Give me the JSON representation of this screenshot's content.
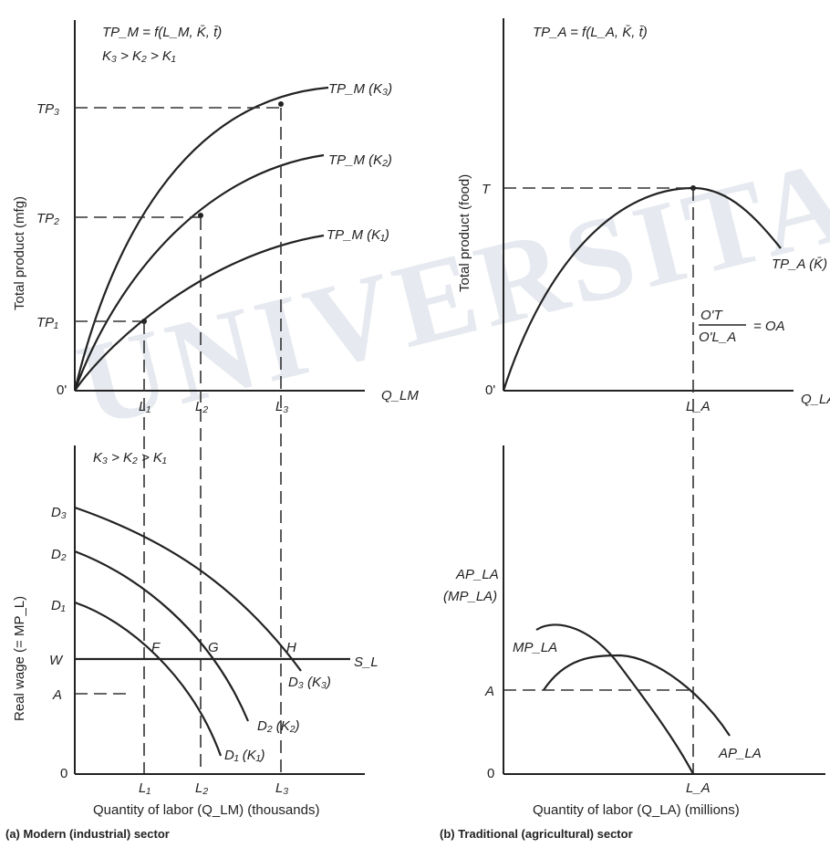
{
  "panel_a": {
    "top": {
      "equation": "TP_M = f(L_M, K̄, t̄)",
      "condition": "K₃ > K₂ > K₁",
      "y_axis_label": "Total product (mfg)",
      "x_axis_label": "Q_LM",
      "origin": "0'",
      "y_ticks": [
        "TP₃",
        "TP₂",
        "TP₁"
      ],
      "x_ticks": [
        "L₁",
        "L₂",
        "L₃"
      ],
      "curves": [
        "TP_M (K₃)",
        "TP_M (K₂)",
        "TP_M (K₁)"
      ]
    },
    "bottom": {
      "condition": "K₃ > K₂ > K₁",
      "y_axis_label": "Real wage (= MP_L)",
      "x_axis_label": "Quantity of labor (Q_LM) (thousands)",
      "origin": "0",
      "y_ticks": [
        "D₃",
        "D₂",
        "D₁",
        "W",
        "A"
      ],
      "x_ticks": [
        "L₁",
        "L₂",
        "L₃"
      ],
      "points": [
        "F",
        "G",
        "H"
      ],
      "supply_label": "S_L",
      "curves": [
        "D₃ (K₃)",
        "D₂ (K₂)",
        "D₁ (K₁)"
      ]
    },
    "caption": "(a) Modern (industrial) sector"
  },
  "panel_b": {
    "top": {
      "equation": "TP_A = f(L_A, K̄, t̄)",
      "y_axis_label": "Total product (food)",
      "x_axis_label": "Q_LA",
      "origin": "0'",
      "y_tick": "T",
      "x_tick": "L_A",
      "curve": "TP_A (K̄)",
      "fraction_num": "O'T",
      "fraction_den": "O'L_A",
      "fraction_rhs": "= OA"
    },
    "bottom": {
      "y_axis_label_1": "AP_LA",
      "y_axis_label_2": "(MP_LA)",
      "x_axis_label": "Quantity of labor (Q_LA) (millions)",
      "origin": "0",
      "y_tick": "A",
      "x_tick": "L_A",
      "curves": [
        "MP_LA",
        "AP_LA"
      ]
    },
    "caption": "(b) Traditional (agricultural) sector"
  },
  "watermark": "UNIVERSITAS"
}
